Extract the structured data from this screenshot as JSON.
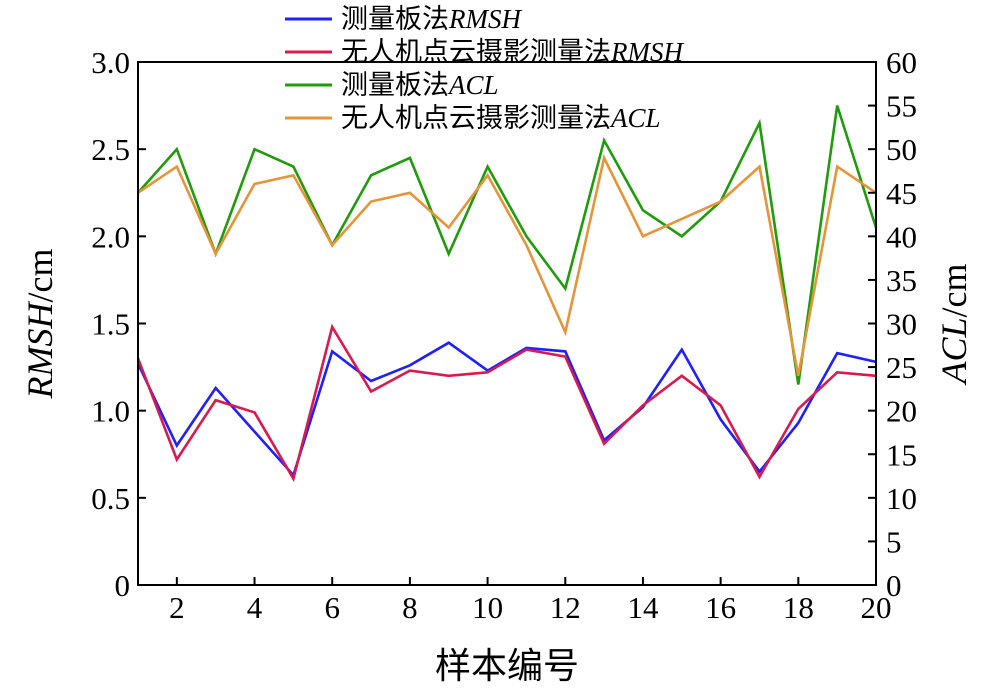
{
  "chart_data": {
    "type": "line",
    "xlabel": "样本编号",
    "x": [
      1,
      2,
      3,
      4,
      5,
      6,
      7,
      8,
      9,
      10,
      11,
      12,
      13,
      14,
      15,
      16,
      17,
      18,
      19,
      20
    ],
    "x_ticks": [
      "2",
      "4",
      "6",
      "8",
      "10",
      "12",
      "14",
      "16",
      "18",
      "20"
    ],
    "xlim": [
      1,
      20
    ],
    "y_left": {
      "label_italic": "RMSH",
      "label_unit": "/cm",
      "lim": [
        0,
        3.0
      ],
      "ticks": [
        "0",
        "0.5",
        "1.0",
        "1.5",
        "2.0",
        "2.5",
        "3.0"
      ]
    },
    "y_right": {
      "label_italic": "ACL",
      "label_unit": "/cm",
      "lim": [
        0,
        60
      ],
      "ticks": [
        "0",
        "5",
        "10",
        "15",
        "20",
        "25",
        "30",
        "35",
        "40",
        "45",
        "50",
        "55",
        "60"
      ]
    },
    "series": [
      {
        "name_prefix": "测量板法",
        "name_italic": "RMSH",
        "axis": "left",
        "color": "#1f1fff",
        "values": [
          1.27,
          0.8,
          1.13,
          0.88,
          0.63,
          1.34,
          1.17,
          1.26,
          1.39,
          1.23,
          1.36,
          1.34,
          0.83,
          1.02,
          1.35,
          0.95,
          0.65,
          0.93,
          1.33,
          1.28
        ]
      },
      {
        "name_prefix": "无人机点云摄影测量法",
        "name_italic": "RMSH",
        "axis": "left",
        "color": "#d81b4e",
        "values": [
          1.3,
          0.72,
          1.06,
          0.99,
          0.61,
          1.48,
          1.11,
          1.23,
          1.2,
          1.22,
          1.35,
          1.31,
          0.81,
          1.03,
          1.2,
          1.03,
          0.62,
          1.01,
          1.22,
          1.2
        ]
      },
      {
        "name_prefix": "测量板法",
        "name_italic": "ACL",
        "axis": "right",
        "color": "#1f9b0c",
        "values": [
          45,
          50,
          38,
          50,
          48,
          39,
          47,
          49,
          38,
          48,
          40,
          34,
          51,
          43,
          40,
          44,
          53,
          23,
          55,
          41
        ]
      },
      {
        "name_prefix": "无人机点云摄影测量法",
        "name_italic": "ACL",
        "axis": "right",
        "color": "#e6943a",
        "values": [
          45,
          48,
          38,
          46,
          47,
          39,
          44,
          45,
          41,
          47,
          39,
          29,
          49,
          40,
          42,
          44,
          48,
          24,
          48,
          45
        ]
      }
    ]
  }
}
